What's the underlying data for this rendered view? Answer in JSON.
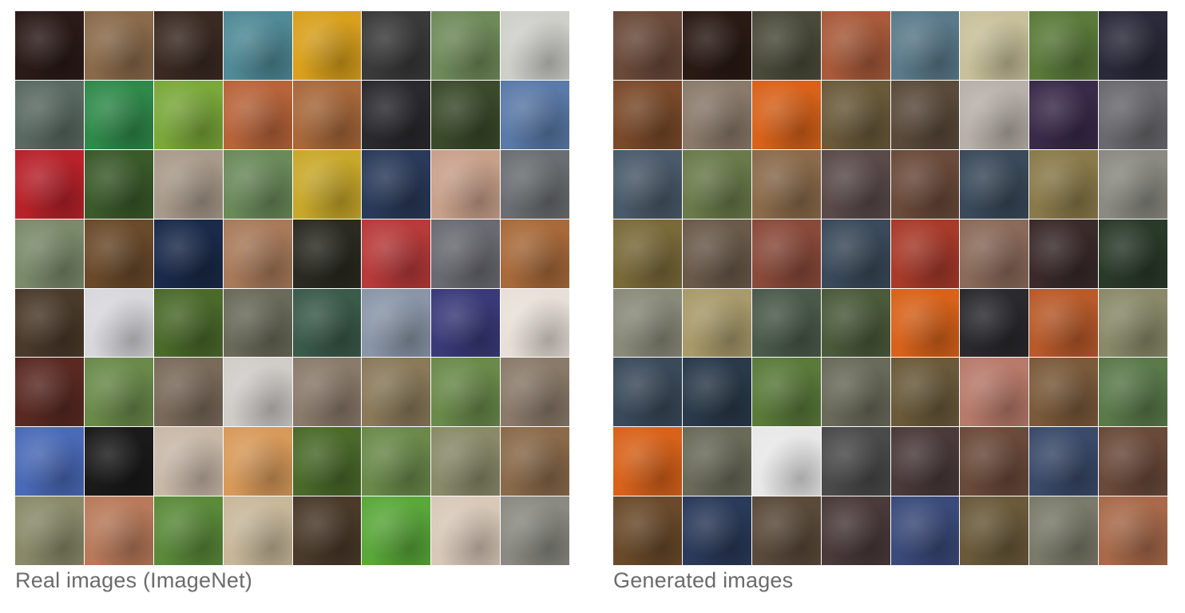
{
  "captions": {
    "real": "Real images (ImageNet)",
    "generated": "Generated images"
  },
  "real_tiles": [
    [
      "#2a1a18",
      "#8a6a4a",
      "#3a2a22",
      "#4f8a96",
      "#d8a01c",
      "#3a3a3a",
      "#6f8a5a",
      "#cfcfca"
    ],
    [
      "#5a6a62",
      "#2f8a4a",
      "#7aa83a",
      "#b8643a",
      "#a8683a",
      "#2a2a2e",
      "#3a4a2a",
      "#5a7aa8"
    ],
    [
      "#b8222a",
      "#3a5a2a",
      "#a89a8a",
      "#6a8a5a",
      "#c8a82a",
      "#2a3a5a",
      "#c8a08a",
      "#6a6e72"
    ],
    [
      "#7a8a6a",
      "#6a4a2a",
      "#1a2a4a",
      "#a87a5a",
      "#2a2a22",
      "#b83a3a",
      "#6a6a72",
      "#a86a3a"
    ],
    [
      "#4a3a2a",
      "#d8d8dc",
      "#4a6a2a",
      "#6a6a5a",
      "#3a5a4a",
      "#8a96a8",
      "#3a3a7a",
      "#e8e0d8"
    ],
    [
      "#5a2a22",
      "#6a8a4a",
      "#7a6a5a",
      "#d0ccc8",
      "#8a7a6a",
      "#8a7a5a",
      "#6a8a4a",
      "#8a7a6a"
    ],
    [
      "#4a6ab8",
      "#1a1a1a",
      "#c8b8a8",
      "#d89a5a",
      "#4a6a2a",
      "#6a8a4a",
      "#8a8a6a",
      "#8a6a4a"
    ],
    [
      "#8a8a6a",
      "#b87a5a",
      "#5a8a3a",
      "#c8b89a",
      "#4a3a2a",
      "#5aa83a",
      "#d8c8b8",
      "#8a8a82"
    ]
  ],
  "generated_tiles": [
    [
      "#6a4a3a",
      "#2a1a14",
      "#4a4a3a",
      "#a85a3a",
      "#5a7a8a",
      "#c8c09a",
      "#5a7a3a",
      "#2a2a3a"
    ],
    [
      "#7a4a2a",
      "#8a7a6a",
      "#d8621a",
      "#6a5a3a",
      "#5a4a3a",
      "#b8b0aa",
      "#3a2a4a",
      "#6a6a6e"
    ],
    [
      "#4a5a6a",
      "#6a7a4a",
      "#8a6a4a",
      "#5a4a4a",
      "#6a4a3a",
      "#3a4a5a",
      "#8a7a4a",
      "#8a8a82"
    ],
    [
      "#7a6a3a",
      "#6a5a4a",
      "#8a4a3a",
      "#3a4a5a",
      "#a83a2a",
      "#8a6a5a",
      "#3a2a2a",
      "#2a3a2a"
    ],
    [
      "#8a8a7a",
      "#a89a6a",
      "#4a5a4a",
      "#4a5a3a",
      "#d8621a",
      "#2a2a2e",
      "#b85a2a",
      "#8a8a6a"
    ],
    [
      "#3a4a5a",
      "#2a3a4a",
      "#5a7a3a",
      "#6a6a5a",
      "#6a5a3a",
      "#b87a6a",
      "#7a5a3a",
      "#5a7a4a"
    ],
    [
      "#d8621a",
      "#6a6a5a",
      "#e8e8e8",
      "#4a4a4a",
      "#4a3a3a",
      "#6a4a3a",
      "#3a4a6a",
      "#6a4a3a"
    ],
    [
      "#6a4a2a",
      "#2a3a5a",
      "#5a4a3a",
      "#4a3a3a",
      "#3a4a7a",
      "#6a5a3a",
      "#7a7a6a",
      "#a86a4a"
    ]
  ]
}
